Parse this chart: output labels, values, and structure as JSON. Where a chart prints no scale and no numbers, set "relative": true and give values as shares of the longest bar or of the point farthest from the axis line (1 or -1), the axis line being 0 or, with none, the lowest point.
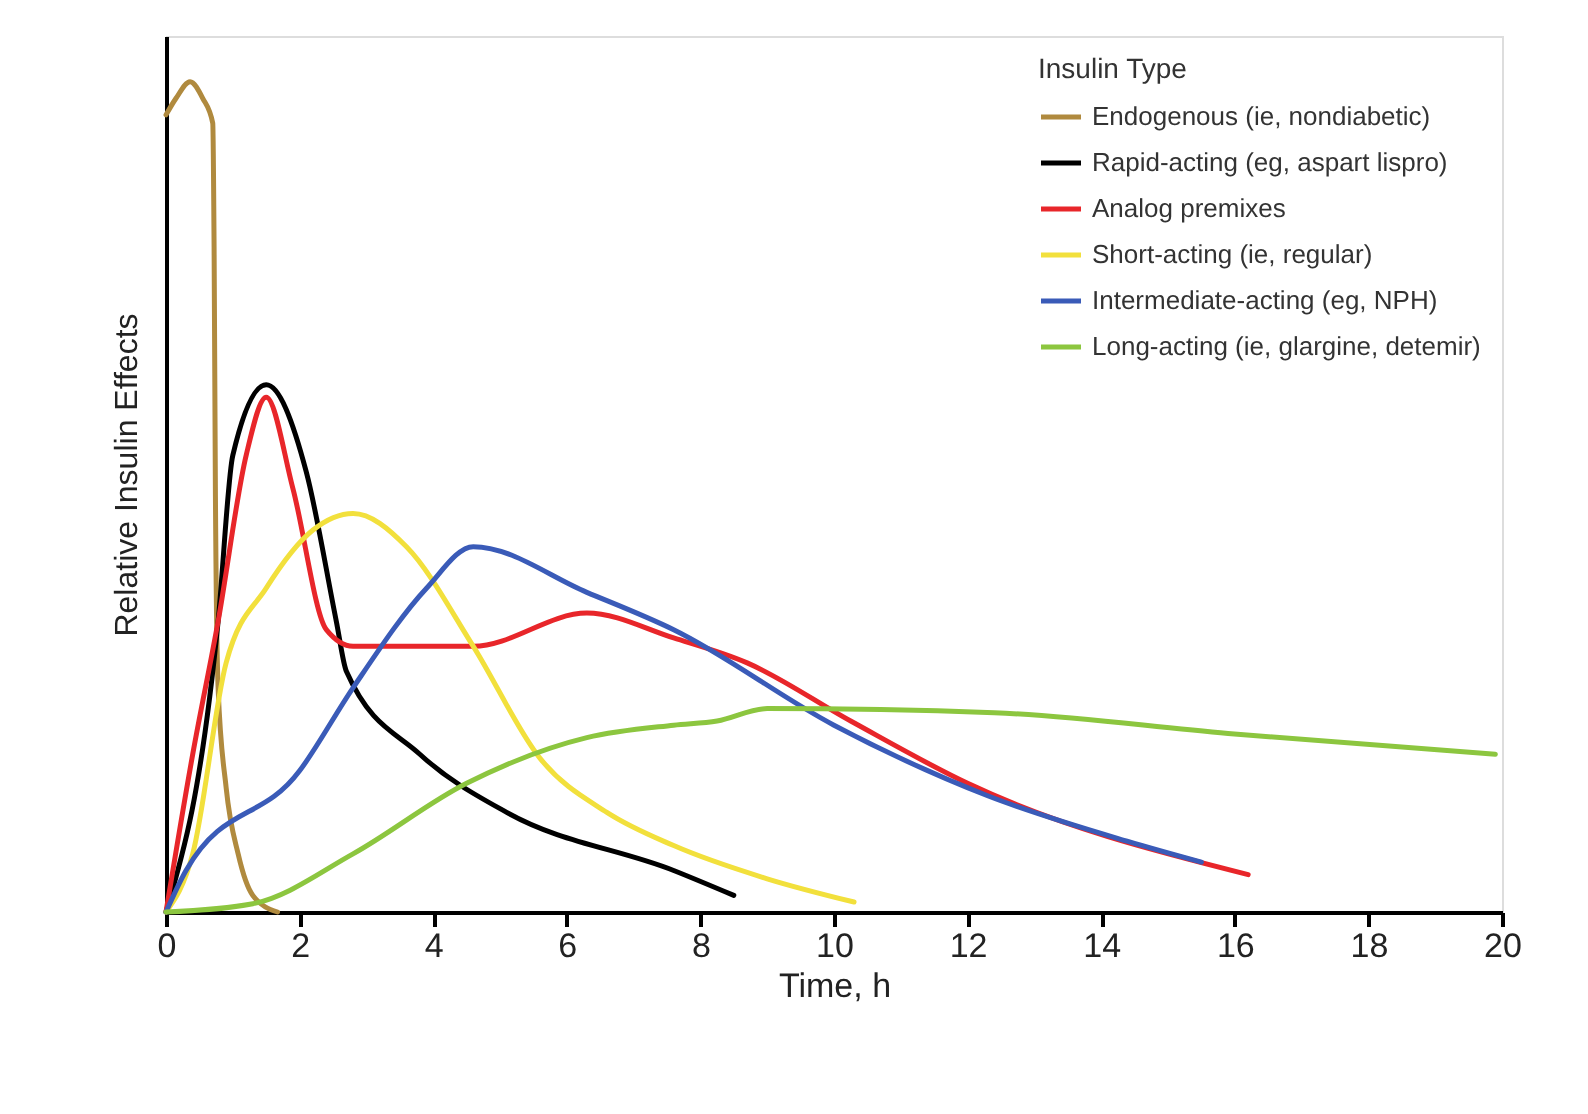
{
  "chart_data": {
    "type": "line",
    "xlabel": "Time, h",
    "ylabel": "Relative Insulin Effects",
    "legend_title": "Insulin Type",
    "legend": "top right",
    "grid": false,
    "relative": true,
    "marker": "none",
    "line_style": "solid",
    "xlim": [
      0,
      20
    ],
    "xticks": [
      0,
      2,
      4,
      6,
      8,
      10,
      12,
      14,
      16,
      18,
      20
    ],
    "series": [
      {
        "name": "Endogenous (ie, nondiabetic)",
        "color": "#b08a3e",
        "x": [
          0,
          0.15,
          0.36,
          0.55,
          0.7,
          0.72,
          0.74,
          0.78,
          0.9,
          1.08,
          1.3,
          1.67
        ],
        "values": [
          0.96,
          0.98,
          1.0,
          0.98,
          0.95,
          0.8,
          0.5,
          0.27,
          0.15,
          0.07,
          0.02,
          0
        ]
      },
      {
        "name": "Rapid-acting (eg, aspart lispro)",
        "color": "#000000",
        "x": [
          0,
          0.78,
          1.0,
          1.5,
          2.1,
          2.55,
          2.7,
          3.8,
          5.1,
          7.6,
          8.5
        ],
        "values": [
          0,
          0.35,
          0.55,
          0.635,
          0.53,
          0.35,
          0.29,
          0.19,
          0.12,
          0.05,
          0.02
        ]
      },
      {
        "name": "Analog premixes",
        "color": "#e8262a",
        "x": [
          0,
          0.4,
          0.78,
          1.2,
          1.5,
          1.9,
          2.4,
          2.8,
          4.6,
          6.3,
          7.6,
          8.7,
          10.25,
          12,
          16.2
        ],
        "values": [
          0,
          0.19,
          0.35,
          0.55,
          0.62,
          0.51,
          0.34,
          0.32,
          0.32,
          0.36,
          0.33,
          0.3,
          0.23,
          0.155,
          0.045
        ]
      },
      {
        "name": "Short-acting (ie, regular)",
        "color": "#f2e03c",
        "x": [
          0,
          0.4,
          0.9,
          1.5,
          2.2,
          2.8,
          3.6,
          4.6,
          5.6,
          6.6,
          7.6,
          9,
          10.3
        ],
        "values": [
          0,
          0.07,
          0.3,
          0.39,
          0.46,
          0.48,
          0.44,
          0.32,
          0.185,
          0.12,
          0.08,
          0.04,
          0.012
        ]
      },
      {
        "name": "Intermediate-acting (eg, NPH)",
        "color": "#3a5bb8",
        "x": [
          0,
          0.3,
          2.0,
          2.8,
          3.9,
          4.6,
          6.3,
          7.6,
          10,
          12.3,
          14.4,
          15.5
        ],
        "values": [
          0,
          0.05,
          0.17,
          0.27,
          0.39,
          0.44,
          0.385,
          0.34,
          0.225,
          0.14,
          0.085,
          0.06
        ]
      },
      {
        "name": "Long-acting (ie, glargine, detemir)",
        "color": "#8cc63f",
        "x": [
          0,
          1.3,
          2.8,
          4.5,
          6.3,
          7.6,
          8.25,
          9,
          12.4,
          15.9,
          19.9
        ],
        "values": [
          0,
          0.01,
          0.07,
          0.155,
          0.21,
          0.225,
          0.23,
          0.245,
          0.24,
          0.215,
          0.19
        ]
      }
    ]
  }
}
